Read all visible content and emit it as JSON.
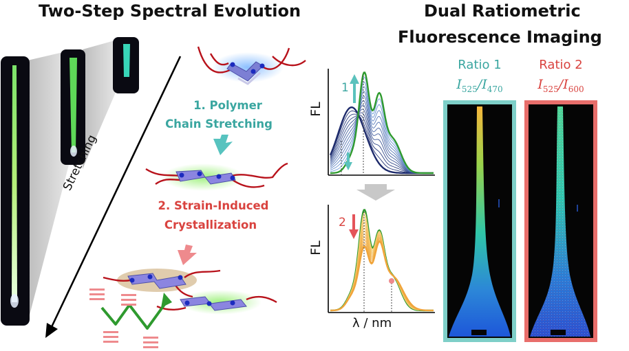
{
  "titles": {
    "left": "Two-Step Spectral Evolution",
    "right_line1": "Dual Ratiometric",
    "right_line2": "Fluorescence Imaging"
  },
  "steps": {
    "step1_line1": "1. Polymer",
    "step1_line2": "Chain Stretching",
    "step2_line1": "2. Strain-Induced",
    "step2_line2": "Crystallization"
  },
  "stretching_label": "Stretching",
  "spectra": {
    "top": {
      "ylabel": "FL",
      "marker": "1"
    },
    "bottom": {
      "ylabel": "FL",
      "marker": "2",
      "xlabel": "λ / nm"
    }
  },
  "ratios": {
    "ratio1": {
      "name": "Ratio 1",
      "num": "525",
      "den": "470"
    },
    "ratio2": {
      "name": "Ratio 2",
      "num": "525",
      "den": "600"
    }
  },
  "colors": {
    "teal": "#3aa6a0",
    "red": "#d9433f",
    "green": "#2e9a2e",
    "orange": "#f0a43a",
    "navy": "#1d2a6b",
    "teal_frame": "#7ecfc8",
    "red_frame": "#e86e6b"
  }
}
